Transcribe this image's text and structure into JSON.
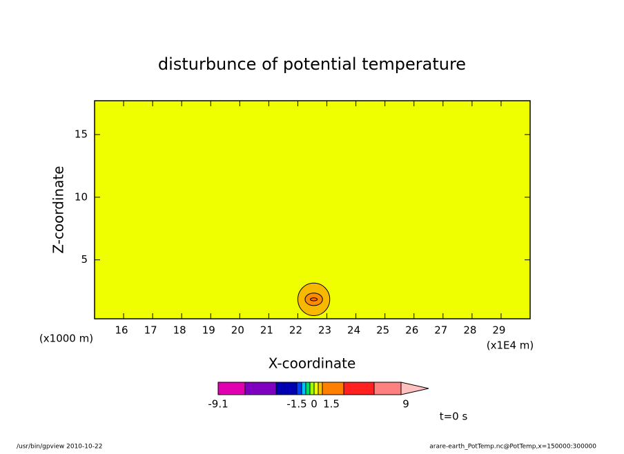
{
  "chart_data": {
    "type": "contour",
    "title": "disturbunce of potential temperature",
    "x_label": "X-coordinate",
    "y_label": "Z-coordinate",
    "x_unit": "(x1E4 m)",
    "y_unit": "(x1000 m)",
    "xlim": [
      15,
      30
    ],
    "xticks": [
      16,
      17,
      18,
      19,
      20,
      21,
      22,
      23,
      24,
      25,
      26,
      27,
      28,
      29
    ],
    "ylim": [
      0.3,
      17.7
    ],
    "yticks": [
      5,
      10,
      15
    ],
    "background_color": "#f0ff00",
    "contours": [
      {
        "x": 22.55,
        "z": 1.85,
        "rx": 0.55,
        "rz": 1.3,
        "color": "#f8b800"
      },
      {
        "x": 22.55,
        "z": 1.85,
        "rx": 0.3,
        "rz": 0.5,
        "color": "#ff8c00"
      },
      {
        "x": 22.55,
        "z": 1.85,
        "rx": 0.12,
        "rz": 0.12,
        "color": "#ff6a00"
      }
    ],
    "colorbar": {
      "colors": [
        "#e000b0",
        "#8000c0",
        "#0000b0",
        "#0040ff",
        "#00c0ff",
        "#00e060",
        "#a0ff00",
        "#f0ff00",
        "#ffc000",
        "#ff8000",
        "#ff2020",
        "#ff8080",
        "#ffc0c0"
      ],
      "ticks": [
        -9.1,
        -1.5,
        0,
        1.5,
        9
      ]
    },
    "annotation": "t=0 s",
    "footer_left": "/usr/bin/gpview  2010-10-22",
    "footer_right": "arare-earth_PotTemp.nc@PotTemp,x=150000:300000"
  }
}
